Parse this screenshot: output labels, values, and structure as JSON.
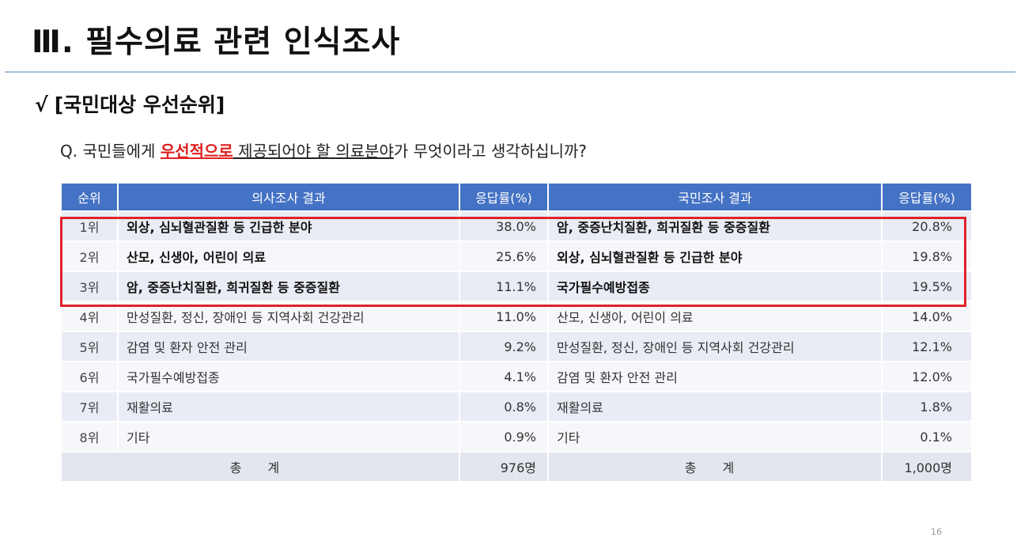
{
  "title": "Ⅲ. 필수의료 관련 인식조사",
  "subtitle": {
    "check": "√",
    "text": "[국민대상 우선순위]"
  },
  "question": {
    "prefix": "Q. 국민들에게 ",
    "highlight": "우선적으로",
    "middle": " 제공되어야 할 ",
    "underlined": "의료분야",
    "suffix": "가 무엇이라고 생각하십니까?"
  },
  "table": {
    "headers": [
      "순위",
      "의사조사 결과",
      "응답률(%)",
      "국민조사 결과",
      "응답률(%)"
    ],
    "rows": [
      {
        "rank": "1위",
        "doctor_item": "외상, 심뇌혈관질환 등 긴급한 분야",
        "doctor_rate": "38.0%",
        "public_item": "암, 중증난치질환, 희귀질환 등 중증질환",
        "public_rate": "20.8%"
      },
      {
        "rank": "2위",
        "doctor_item": "산모, 신생아, 어린이 의료",
        "doctor_rate": "25.6%",
        "public_item": "외상, 심뇌혈관질환 등 긴급한 분야",
        "public_rate": "19.8%"
      },
      {
        "rank": "3위",
        "doctor_item": "암, 중증난치질환, 희귀질환 등 중증질환",
        "doctor_rate": "11.1%",
        "public_item": "국가필수예방접종",
        "public_rate": "19.5%"
      },
      {
        "rank": "4위",
        "doctor_item": "만성질환, 정신, 장애인 등 지역사회 건강관리",
        "doctor_rate": "11.0%",
        "public_item": "산모, 신생아, 어린이 의료",
        "public_rate": "14.0%"
      },
      {
        "rank": "5위",
        "doctor_item": "감염 및 환자 안전 관리",
        "doctor_rate": "9.2%",
        "public_item": "만성질환, 정신, 장애인 등 지역사회 건강관리",
        "public_rate": "12.1%"
      },
      {
        "rank": "6위",
        "doctor_item": "국가필수예방접종",
        "doctor_rate": "4.1%",
        "public_item": "감염 및 환자 안전 관리",
        "public_rate": "12.0%"
      },
      {
        "rank": "7위",
        "doctor_item": "재활의료",
        "doctor_rate": "0.8%",
        "public_item": "재활의료",
        "public_rate": "1.8%"
      },
      {
        "rank": "8위",
        "doctor_item": "기타",
        "doctor_rate": "0.9%",
        "public_item": "기타",
        "public_rate": "0.1%"
      }
    ],
    "total": {
      "label": "총 계",
      "doctor_total": "976명",
      "public_total": "1,000명"
    }
  },
  "page_number": "16",
  "colors": {
    "header_bg": "#4472c4",
    "highlight_border": "#e0222a",
    "highlight_text": "#e02020"
  }
}
